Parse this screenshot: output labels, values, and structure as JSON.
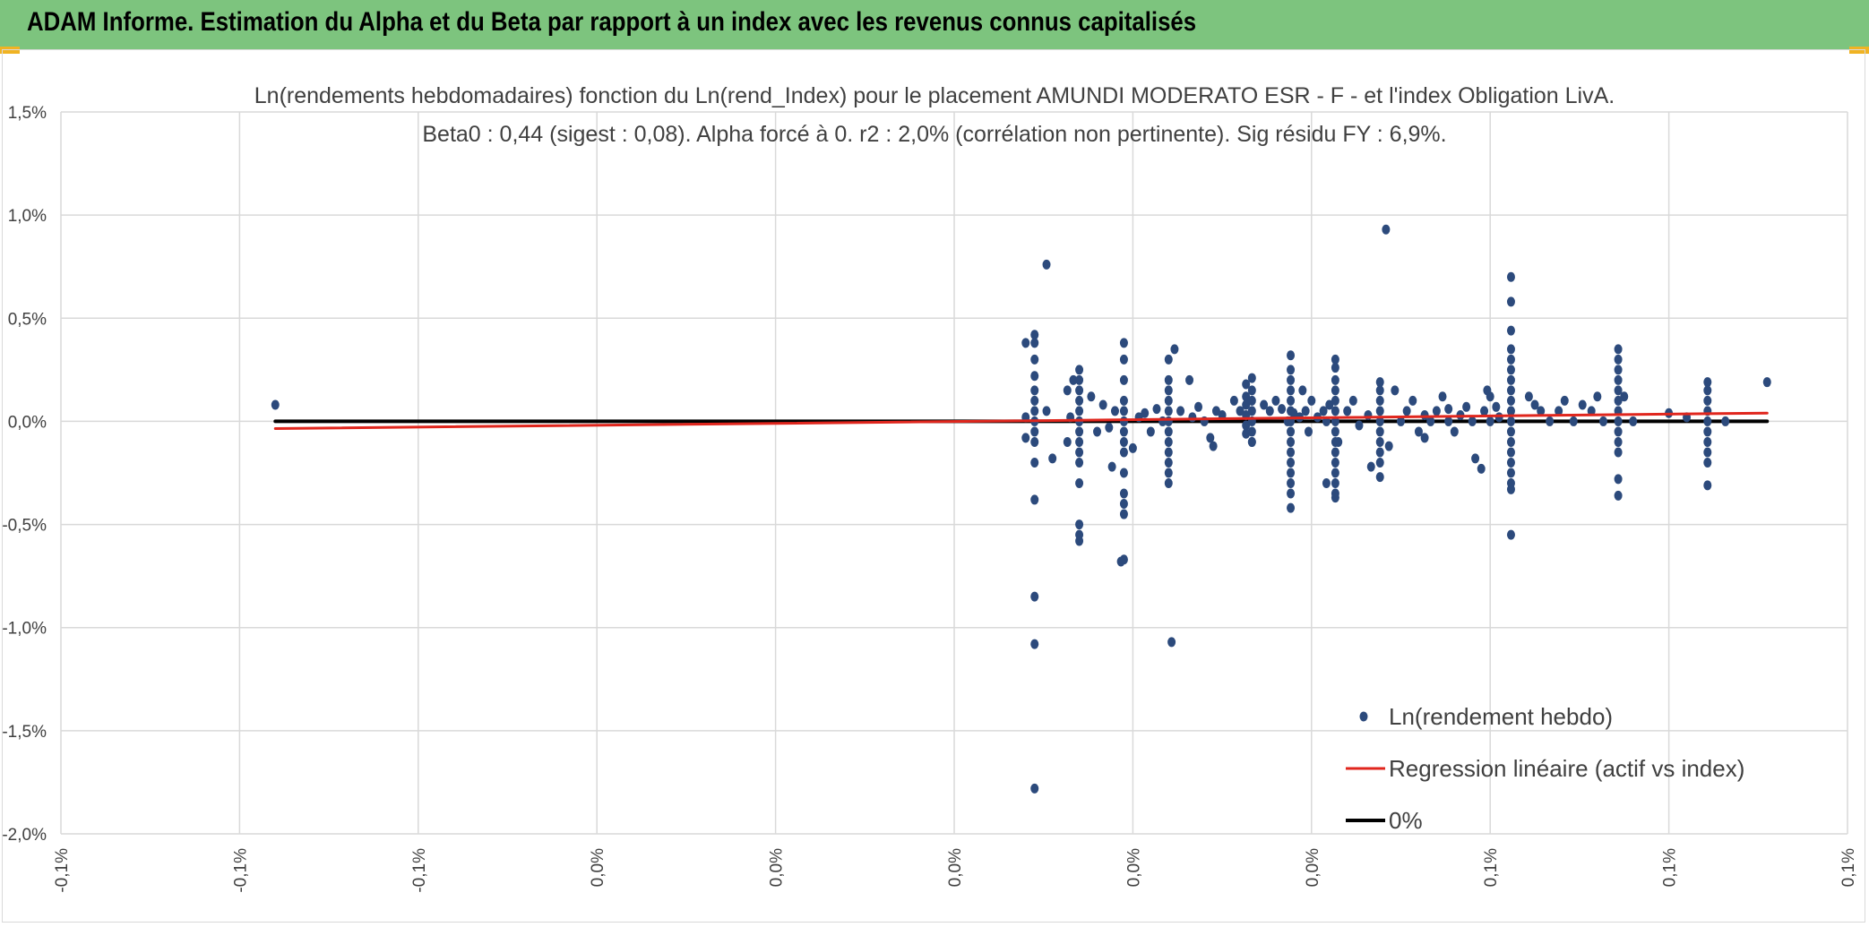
{
  "header": {
    "title": "ADAM Informe. Estimation du Alpha et du Beta par rapport à un index avec les revenus connus capitalisés",
    "background": "#7dc47e",
    "corner_color": "#f0b323"
  },
  "chart_data": {
    "type": "scatter",
    "title": "Ln(rendements hebdomadaires) fonction du Ln(rend_Index) pour le placement AMUNDI MODERATO ESR - F - et l'index Obligation LivA.",
    "subtitle": "Beta0 : 0,44 (sigest : 0,08). Alpha forcé à 0. r2 : 2,0% (corrélation non pertinente). Sig résidu FY : 6,9%.",
    "xlabel": "",
    "ylabel": "",
    "x_unit": "%",
    "y_unit": "%",
    "xlim": [
      -0.15,
      0.15
    ],
    "ylim": [
      -2.0,
      1.5
    ],
    "x_tick_labels": [
      "-0,1%",
      "-0,1%",
      "-0,1%",
      "0,0%",
      "0,0%",
      "0,0%",
      "0,0%",
      "0,0%",
      "0,1%",
      "0,1%",
      "0,1%"
    ],
    "y_ticks": [
      1.5,
      1.0,
      0.5,
      0.0,
      -0.5,
      -1.0,
      -1.5,
      -2.0
    ],
    "y_tick_labels": [
      "1,5%",
      "1,0%",
      "0,5%",
      "0,0%",
      "-0,5%",
      "-1,0%",
      "-1,5%",
      "-2,0%"
    ],
    "grid": true,
    "legend_position": "bottom-right",
    "series": [
      {
        "name": "Ln(rendement hebdo)",
        "kind": "scatter",
        "color": "#2c4a7c",
        "points": [
          [
            -0.114,
            0.08
          ],
          [
            0.0135,
            0.42
          ],
          [
            0.0135,
            0.38
          ],
          [
            0.0135,
            0.3
          ],
          [
            0.0135,
            0.22
          ],
          [
            0.0135,
            0.15
          ],
          [
            0.0135,
            0.1
          ],
          [
            0.0135,
            0.05
          ],
          [
            0.0135,
            0.0
          ],
          [
            0.0135,
            -0.05
          ],
          [
            0.0135,
            -0.1
          ],
          [
            0.0135,
            -0.2
          ],
          [
            0.0135,
            -0.38
          ],
          [
            0.0135,
            -0.85
          ],
          [
            0.0135,
            -1.08
          ],
          [
            0.0135,
            -1.78
          ],
          [
            0.012,
            0.38
          ],
          [
            0.012,
            0.02
          ],
          [
            0.012,
            -0.08
          ],
          [
            0.0155,
            0.76
          ],
          [
            0.0155,
            0.05
          ],
          [
            0.0165,
            -0.18
          ],
          [
            0.019,
            0.15
          ],
          [
            0.019,
            -0.1
          ],
          [
            0.02,
            0.2
          ],
          [
            0.0195,
            0.02
          ],
          [
            0.021,
            0.25
          ],
          [
            0.021,
            0.2
          ],
          [
            0.021,
            0.15
          ],
          [
            0.021,
            0.1
          ],
          [
            0.021,
            0.05
          ],
          [
            0.021,
            0.0
          ],
          [
            0.021,
            -0.05
          ],
          [
            0.021,
            -0.1
          ],
          [
            0.021,
            -0.15
          ],
          [
            0.021,
            -0.2
          ],
          [
            0.021,
            -0.3
          ],
          [
            0.021,
            -0.5
          ],
          [
            0.021,
            -0.55
          ],
          [
            0.021,
            -0.58
          ],
          [
            0.023,
            0.12
          ],
          [
            0.024,
            -0.05
          ],
          [
            0.025,
            0.08
          ],
          [
            0.026,
            -0.03
          ],
          [
            0.027,
            0.05
          ],
          [
            0.0265,
            -0.22
          ],
          [
            0.0285,
            0.38
          ],
          [
            0.0285,
            0.3
          ],
          [
            0.0285,
            0.2
          ],
          [
            0.0285,
            0.1
          ],
          [
            0.0285,
            0.05
          ],
          [
            0.0285,
            0.0
          ],
          [
            0.0285,
            -0.05
          ],
          [
            0.0285,
            -0.1
          ],
          [
            0.0285,
            -0.15
          ],
          [
            0.0285,
            -0.25
          ],
          [
            0.0285,
            -0.35
          ],
          [
            0.0285,
            -0.4
          ],
          [
            0.0285,
            -0.45
          ],
          [
            0.028,
            -0.68
          ],
          [
            0.0285,
            -0.67
          ],
          [
            0.03,
            -0.13
          ],
          [
            0.031,
            0.02
          ],
          [
            0.032,
            0.04
          ],
          [
            0.033,
            -0.05
          ],
          [
            0.034,
            0.06
          ],
          [
            0.035,
            0.0
          ],
          [
            0.036,
            0.3
          ],
          [
            0.036,
            0.2
          ],
          [
            0.036,
            0.15
          ],
          [
            0.036,
            0.1
          ],
          [
            0.036,
            0.05
          ],
          [
            0.036,
            0.0
          ],
          [
            0.036,
            -0.05
          ],
          [
            0.036,
            -0.1
          ],
          [
            0.036,
            -0.15
          ],
          [
            0.036,
            -0.2
          ],
          [
            0.036,
            -0.25
          ],
          [
            0.036,
            -0.3
          ],
          [
            0.0365,
            -1.07
          ],
          [
            0.037,
            0.35
          ],
          [
            0.038,
            0.05
          ],
          [
            0.0395,
            0.2
          ],
          [
            0.04,
            0.02
          ],
          [
            0.041,
            0.07
          ],
          [
            0.042,
            0.0
          ],
          [
            0.043,
            -0.08
          ],
          [
            0.0435,
            -0.12
          ],
          [
            0.044,
            0.05
          ],
          [
            0.045,
            0.03
          ],
          [
            0.047,
            0.1
          ],
          [
            0.048,
            0.05
          ],
          [
            0.049,
            0.18
          ],
          [
            0.049,
            0.12
          ],
          [
            0.049,
            0.08
          ],
          [
            0.049,
            0.03
          ],
          [
            0.049,
            -0.02
          ],
          [
            0.049,
            -0.06
          ],
          [
            0.05,
            0.21
          ],
          [
            0.05,
            0.15
          ],
          [
            0.05,
            0.1
          ],
          [
            0.05,
            0.05
          ],
          [
            0.05,
            0.0
          ],
          [
            0.05,
            -0.05
          ],
          [
            0.05,
            -0.1
          ],
          [
            0.05,
            -0.1
          ],
          [
            0.052,
            0.08
          ],
          [
            0.053,
            0.05
          ],
          [
            0.054,
            0.1
          ],
          [
            0.055,
            0.06
          ],
          [
            0.056,
            0.0
          ],
          [
            0.057,
            0.04
          ],
          [
            0.058,
            0.02
          ],
          [
            0.0565,
            0.32
          ],
          [
            0.0565,
            0.25
          ],
          [
            0.0565,
            0.2
          ],
          [
            0.0565,
            0.15
          ],
          [
            0.0565,
            0.1
          ],
          [
            0.0565,
            0.05
          ],
          [
            0.0565,
            0.0
          ],
          [
            0.0565,
            -0.05
          ],
          [
            0.0565,
            -0.1
          ],
          [
            0.0565,
            -0.15
          ],
          [
            0.0565,
            -0.2
          ],
          [
            0.0565,
            -0.25
          ],
          [
            0.0565,
            -0.3
          ],
          [
            0.0565,
            -0.35
          ],
          [
            0.0565,
            -0.42
          ],
          [
            0.0585,
            0.15
          ],
          [
            0.059,
            0.05
          ],
          [
            0.0595,
            -0.05
          ],
          [
            0.06,
            0.1
          ],
          [
            0.061,
            0.02
          ],
          [
            0.062,
            0.05
          ],
          [
            0.0625,
            0.0
          ],
          [
            0.063,
            0.08
          ],
          [
            0.0645,
            -0.1
          ],
          [
            0.0625,
            -0.3
          ],
          [
            0.064,
            0.3
          ],
          [
            0.064,
            0.26
          ],
          [
            0.064,
            0.2
          ],
          [
            0.064,
            0.15
          ],
          [
            0.064,
            0.1
          ],
          [
            0.064,
            0.05
          ],
          [
            0.064,
            0.0
          ],
          [
            0.064,
            -0.05
          ],
          [
            0.064,
            -0.1
          ],
          [
            0.064,
            -0.15
          ],
          [
            0.064,
            -0.2
          ],
          [
            0.064,
            -0.25
          ],
          [
            0.064,
            -0.3
          ],
          [
            0.064,
            -0.35
          ],
          [
            0.064,
            -0.37
          ],
          [
            0.066,
            0.05
          ],
          [
            0.067,
            0.1
          ],
          [
            0.068,
            -0.02
          ],
          [
            0.0695,
            0.03
          ],
          [
            0.0715,
            0.19
          ],
          [
            0.0715,
            0.15
          ],
          [
            0.0715,
            0.1
          ],
          [
            0.0715,
            0.05
          ],
          [
            0.0715,
            0.0
          ],
          [
            0.0715,
            -0.05
          ],
          [
            0.0715,
            -0.1
          ],
          [
            0.0715,
            -0.15
          ],
          [
            0.0715,
            -0.2
          ],
          [
            0.0715,
            -0.27
          ],
          [
            0.07,
            -0.22
          ],
          [
            0.073,
            -0.12
          ],
          [
            0.0725,
            0.93
          ],
          [
            0.074,
            0.15
          ],
          [
            0.075,
            0.0
          ],
          [
            0.076,
            0.05
          ],
          [
            0.077,
            0.1
          ],
          [
            0.078,
            -0.05
          ],
          [
            0.079,
            -0.08
          ],
          [
            0.079,
            0.03
          ],
          [
            0.08,
            0.0
          ],
          [
            0.081,
            0.05
          ],
          [
            0.082,
            0.12
          ],
          [
            0.083,
            0.06
          ],
          [
            0.083,
            0.0
          ],
          [
            0.084,
            -0.05
          ],
          [
            0.085,
            0.03
          ],
          [
            0.086,
            0.07
          ],
          [
            0.087,
            0.0
          ],
          [
            0.0875,
            -0.18
          ],
          [
            0.0885,
            -0.23
          ],
          [
            0.089,
            0.05
          ],
          [
            0.0895,
            0.15
          ],
          [
            0.09,
            0.12
          ],
          [
            0.09,
            0.0
          ],
          [
            0.091,
            0.07
          ],
          [
            0.0915,
            0.02
          ],
          [
            0.0935,
            0.7
          ],
          [
            0.0935,
            0.58
          ],
          [
            0.0935,
            0.44
          ],
          [
            0.0935,
            0.35
          ],
          [
            0.0935,
            0.3
          ],
          [
            0.0935,
            0.25
          ],
          [
            0.0935,
            0.2
          ],
          [
            0.0935,
            0.15
          ],
          [
            0.0935,
            0.1
          ],
          [
            0.0935,
            0.05
          ],
          [
            0.0935,
            0.0
          ],
          [
            0.0935,
            -0.05
          ],
          [
            0.0935,
            -0.1
          ],
          [
            0.0935,
            -0.15
          ],
          [
            0.0935,
            -0.2
          ],
          [
            0.0935,
            -0.25
          ],
          [
            0.0935,
            -0.3
          ],
          [
            0.0935,
            -0.33
          ],
          [
            0.0935,
            -0.55
          ],
          [
            0.0965,
            0.12
          ],
          [
            0.0975,
            0.08
          ],
          [
            0.0985,
            0.05
          ],
          [
            0.1,
            0.0
          ],
          [
            0.1015,
            0.05
          ],
          [
            0.1025,
            0.1
          ],
          [
            0.104,
            0.0
          ],
          [
            0.1055,
            0.08
          ],
          [
            0.107,
            0.05
          ],
          [
            0.108,
            0.12
          ],
          [
            0.109,
            0.0
          ],
          [
            0.1115,
            0.35
          ],
          [
            0.1115,
            0.3
          ],
          [
            0.1115,
            0.25
          ],
          [
            0.1115,
            0.2
          ],
          [
            0.1115,
            0.15
          ],
          [
            0.1115,
            0.1
          ],
          [
            0.1115,
            0.05
          ],
          [
            0.1115,
            0.0
          ],
          [
            0.1115,
            -0.05
          ],
          [
            0.1115,
            -0.1
          ],
          [
            0.1115,
            -0.15
          ],
          [
            0.1115,
            -0.28
          ],
          [
            0.1115,
            -0.36
          ],
          [
            0.1125,
            0.12
          ],
          [
            0.114,
            0.0
          ],
          [
            0.12,
            0.04
          ],
          [
            0.123,
            0.02
          ],
          [
            0.1265,
            0.19
          ],
          [
            0.1265,
            0.15
          ],
          [
            0.1265,
            0.1
          ],
          [
            0.1265,
            0.05
          ],
          [
            0.1265,
            0.0
          ],
          [
            0.1265,
            -0.05
          ],
          [
            0.1265,
            -0.1
          ],
          [
            0.1265,
            -0.15
          ],
          [
            0.1265,
            -0.2
          ],
          [
            0.1265,
            -0.31
          ],
          [
            0.1295,
            0.0
          ],
          [
            0.1365,
            0.19
          ]
        ]
      },
      {
        "name": "Regression linéaire (actif vs index)",
        "kind": "line",
        "color": "#e0261d",
        "points": [
          [
            -0.114,
            -0.035
          ],
          [
            0.1365,
            0.04
          ]
        ]
      },
      {
        "name": "0%",
        "kind": "line",
        "color": "#000000",
        "points": [
          [
            -0.114,
            0.0
          ],
          [
            0.1365,
            0.0
          ]
        ]
      }
    ]
  }
}
